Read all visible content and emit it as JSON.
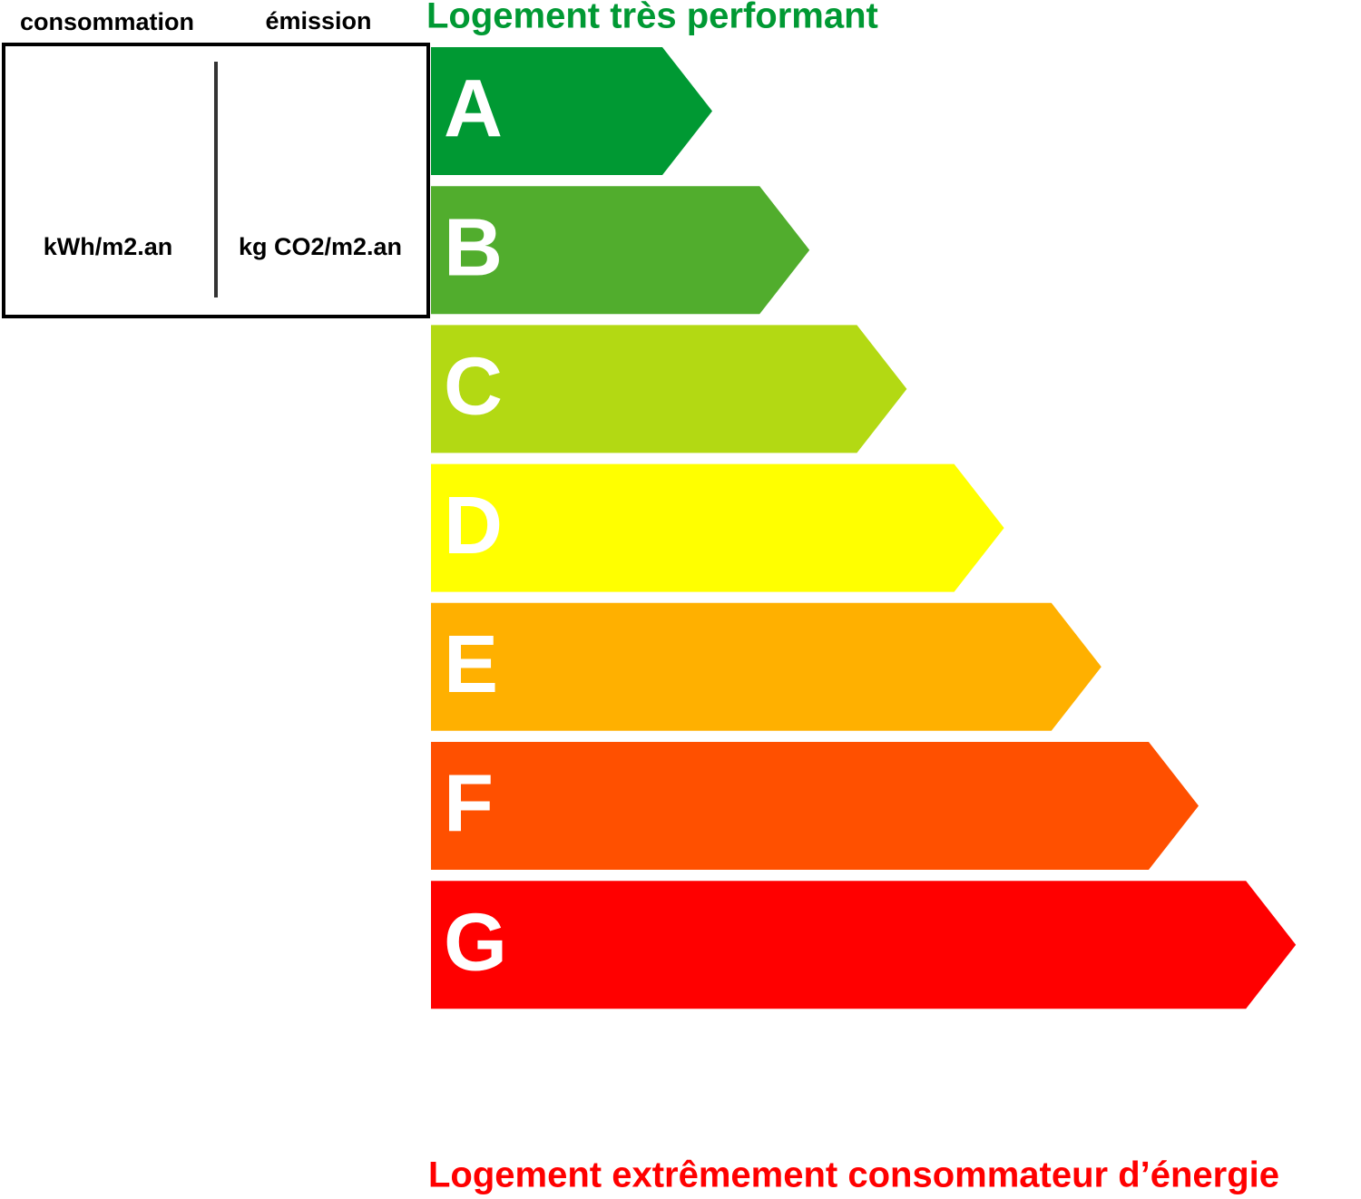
{
  "header": {
    "consumption_label": "consommation",
    "emission_label": "émission",
    "consumption_unit": "kWh/m2.an",
    "emission_unit": "kg CO2/m2.an"
  },
  "top_caption": "Logement très performant",
  "bottom_caption": "Logement extrêmement consommateur d’énergie",
  "classes": [
    {
      "label": "A",
      "color": "#009933"
    },
    {
      "label": "B",
      "color": "#51ad2d"
    },
    {
      "label": "C",
      "color": "#b3d913"
    },
    {
      "label": "D",
      "color": "#ffff00"
    },
    {
      "label": "E",
      "color": "#ffb000"
    },
    {
      "label": "F",
      "color": "#ff5000"
    },
    {
      "label": "G",
      "color": "#ff0000"
    }
  ]
}
